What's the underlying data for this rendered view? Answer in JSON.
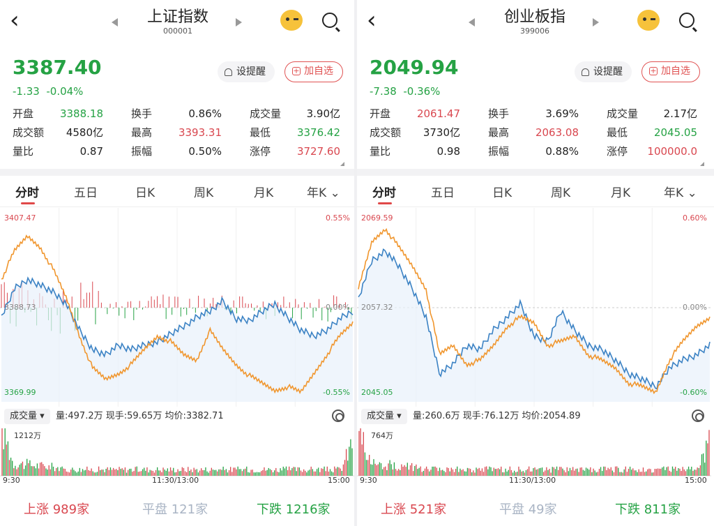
{
  "colors": {
    "up": "#d9474f",
    "down": "#25a244",
    "price_line": "#3b82c4",
    "avg_line": "#f0962e",
    "fill": "#e8f1fb",
    "flat": "#a9b4c4"
  },
  "left": {
    "title": "上证指数",
    "code": "000001",
    "price": "3387.40",
    "change": "-1.33",
    "change_pct": "-0.04%",
    "remind_label": "设提醒",
    "add_label": "加自选",
    "stats": [
      [
        {
          "label": "开盘",
          "value": "3388.18",
          "color": "down"
        },
        {
          "label": "换手",
          "value": "0.86%",
          "color": "neutral"
        },
        {
          "label": "成交量",
          "value": "3.90亿",
          "color": "neutral"
        }
      ],
      [
        {
          "label": "成交额",
          "value": "4580亿",
          "color": "neutral"
        },
        {
          "label": "最高",
          "value": "3393.31",
          "color": "up"
        },
        {
          "label": "最低",
          "value": "3376.42",
          "color": "down"
        }
      ],
      [
        {
          "label": "量比",
          "value": "0.87",
          "color": "neutral"
        },
        {
          "label": "振幅",
          "value": "0.50%",
          "color": "neutral"
        },
        {
          "label": "涨停",
          "value": "3727.60",
          "color": "up"
        }
      ]
    ],
    "tabs": [
      "分时",
      "五日",
      "日K",
      "周K",
      "月K",
      "年K"
    ],
    "chart": {
      "top_price": "3407.47",
      "mid_price": "3388.73",
      "bottom_price": "3369.99",
      "top_pct": "0.55%",
      "mid_pct": "0.00%",
      "bottom_pct": "-0.55%"
    },
    "vol_chip": "成交量",
    "vol_stats": "量:497.2万  现手:59.65万  均价:3382.71",
    "vol_max": "1212万",
    "time_start": "9:30",
    "time_mid": "11:30/13:00",
    "time_end": "15:00",
    "up_label": "上涨",
    "up_count": "989家",
    "flat_label": "平盘",
    "flat_count": "121家",
    "down_label": "下跌",
    "down_count": "1216家"
  },
  "right": {
    "title": "创业板指",
    "code": "399006",
    "price": "2049.94",
    "change": "-7.38",
    "change_pct": "-0.36%",
    "remind_label": "设提醒",
    "add_label": "加自选",
    "stats": [
      [
        {
          "label": "开盘",
          "value": "2061.47",
          "color": "up"
        },
        {
          "label": "换手",
          "value": "3.69%",
          "color": "neutral"
        },
        {
          "label": "成交量",
          "value": "2.17亿",
          "color": "neutral"
        }
      ],
      [
        {
          "label": "成交额",
          "value": "3730亿",
          "color": "neutral"
        },
        {
          "label": "最高",
          "value": "2063.08",
          "color": "up"
        },
        {
          "label": "最低",
          "value": "2045.05",
          "color": "down"
        }
      ],
      [
        {
          "label": "量比",
          "value": "0.98",
          "color": "neutral"
        },
        {
          "label": "振幅",
          "value": "0.88%",
          "color": "neutral"
        },
        {
          "label": "涨停",
          "value": "100000.0",
          "color": "up"
        }
      ]
    ],
    "tabs": [
      "分时",
      "五日",
      "日K",
      "周K",
      "月K",
      "年K"
    ],
    "chart": {
      "top_price": "2069.59",
      "mid_price": "2057.32",
      "bottom_price": "2045.05",
      "top_pct": "0.60%",
      "mid_pct": "0.00%",
      "bottom_pct": "-0.60%"
    },
    "vol_chip": "成交量",
    "vol_stats": "量:260.6万  现手:76.12万  均价:2054.89",
    "vol_max": "764万",
    "time_start": "9:30",
    "time_mid": "11:30/13:00",
    "time_end": "15:00",
    "up_label": "上涨",
    "up_count": "521家",
    "flat_label": "平盘",
    "flat_count": "49家",
    "down_label": "下跌",
    "down_count": "811家"
  }
}
